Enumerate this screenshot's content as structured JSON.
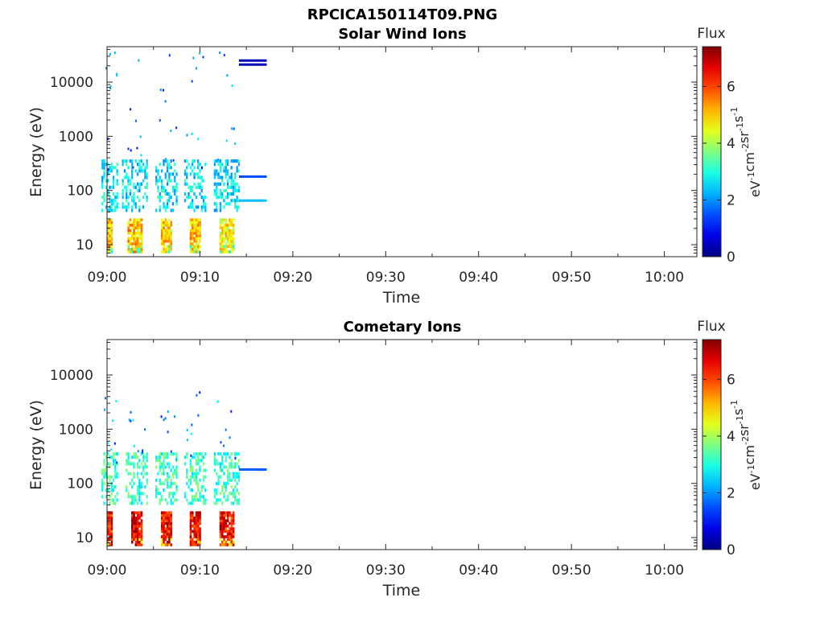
{
  "figure_title": "RPCICA150114T09.PNG",
  "colorbar": {
    "label": "Flux",
    "unit_base": "eV",
    "unit_parts": [
      {
        "base": "eV",
        "exp": "-1"
      },
      {
        "base": "cm",
        "exp": "-2"
      },
      {
        "base": "sr",
        "exp": "-1"
      },
      {
        "base": "s",
        "exp": "-1"
      }
    ],
    "range": [
      0,
      7.4
    ],
    "ticks": [
      "0",
      "2",
      "4",
      "6"
    ],
    "colormap": "jet"
  },
  "chart_data": [
    {
      "type": "heatmap",
      "title": "Solar Wind Ions",
      "xlabel": "Time",
      "ylabel": "Energy (eV)",
      "x_range_minutes": [
        0,
        63.5
      ],
      "x_tick_labels": [
        "09:00",
        "09:10",
        "09:20",
        "09:30",
        "09:40",
        "09:50",
        "10:00"
      ],
      "y_scale": "log",
      "ylim": [
        6,
        45000
      ],
      "y_tick_labels": [
        "10",
        "100",
        "1000",
        "10000"
      ],
      "bursts": [
        {
          "start_min": 0.0,
          "end_min": 0.6,
          "low_flux": 5.0
        },
        {
          "start_min": 2.2,
          "end_min": 3.7,
          "low_flux": 5.1
        },
        {
          "start_min": 5.8,
          "end_min": 7.0,
          "low_flux": 4.9
        },
        {
          "start_min": 8.9,
          "end_min": 10.0,
          "low_flux": 5.0
        },
        {
          "start_min": 12.1,
          "end_min": 13.5,
          "low_flux": 4.6
        }
      ],
      "sparse_points_flux": [
        1.0,
        3.0
      ],
      "lines": [
        {
          "start_min": 14.2,
          "end_min": 17.2,
          "energy_eV": 25000,
          "flux": 0.4
        },
        {
          "start_min": 14.2,
          "end_min": 17.2,
          "energy_eV": 21000,
          "flux": 0.4
        },
        {
          "start_min": 14.2,
          "end_min": 17.2,
          "energy_eV": 180,
          "flux": 1.5
        },
        {
          "start_min": 14.2,
          "end_min": 17.2,
          "energy_eV": 65,
          "flux": 2.3
        }
      ]
    },
    {
      "type": "heatmap",
      "title": "Cometary Ions",
      "xlabel": "Time",
      "ylabel": "Energy (eV)",
      "x_range_minutes": [
        0,
        63.5
      ],
      "x_tick_labels": [
        "09:00",
        "09:10",
        "09:20",
        "09:30",
        "09:40",
        "09:50",
        "10:00"
      ],
      "y_scale": "log",
      "ylim": [
        6,
        45000
      ],
      "y_tick_labels": [
        "10",
        "100",
        "1000",
        "10000"
      ],
      "bursts": [
        {
          "start_min": 0.0,
          "end_min": 0.6,
          "low_flux": 6.3
        },
        {
          "start_min": 2.6,
          "end_min": 3.7,
          "low_flux": 6.6
        },
        {
          "start_min": 5.8,
          "end_min": 7.0,
          "low_flux": 6.4
        },
        {
          "start_min": 8.9,
          "end_min": 10.0,
          "low_flux": 6.6
        },
        {
          "start_min": 12.1,
          "end_min": 13.5,
          "low_flux": 6.4
        }
      ],
      "sparse_points_flux": [
        1.0,
        3.0
      ],
      "lines": [
        {
          "start_min": 14.2,
          "end_min": 17.2,
          "energy_eV": 180,
          "flux": 1.6
        }
      ]
    }
  ]
}
